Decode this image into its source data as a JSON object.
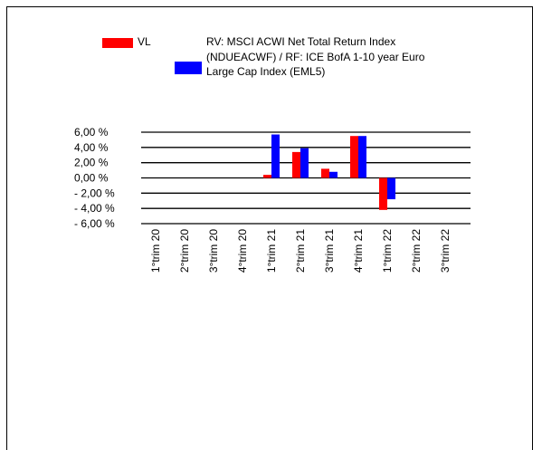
{
  "chart_data": {
    "type": "bar",
    "categories": [
      "1°trim 20",
      "2°trim 20",
      "3°trim 20",
      "4°trim 20",
      "1°trim 21",
      "2°trim 21",
      "3°trim 21",
      "4°trim 21",
      "1°trim 22",
      "2°trim 22",
      "3°trim 22"
    ],
    "series": [
      {
        "name": "VL",
        "color": "#ff0000",
        "values": [
          null,
          null,
          null,
          null,
          0.4,
          3.4,
          1.2,
          5.5,
          -4.2,
          null,
          null
        ]
      },
      {
        "name": "RV: MSCI ACWI Net Total Return Index (NDUEACWF) / RF: ICE BofA 1-10 year Euro Large Cap Index (EML5)",
        "color": "#0000ff",
        "values": [
          null,
          null,
          null,
          null,
          5.7,
          3.9,
          0.8,
          5.5,
          -2.8,
          null,
          null
        ]
      }
    ],
    "ylim": [
      -6,
      6
    ],
    "yticks": [
      {
        "value": 6,
        "label": "6,00 %"
      },
      {
        "value": 4,
        "label": "4,00 %"
      },
      {
        "value": 2,
        "label": "2,00 %"
      },
      {
        "value": 0,
        "label": "0,00 %"
      },
      {
        "value": -2,
        "label": "- 2,00 %"
      },
      {
        "value": -4,
        "label": "- 4,00 %"
      },
      {
        "value": -6,
        "label": "- 6,00 %"
      }
    ],
    "grid": true
  }
}
